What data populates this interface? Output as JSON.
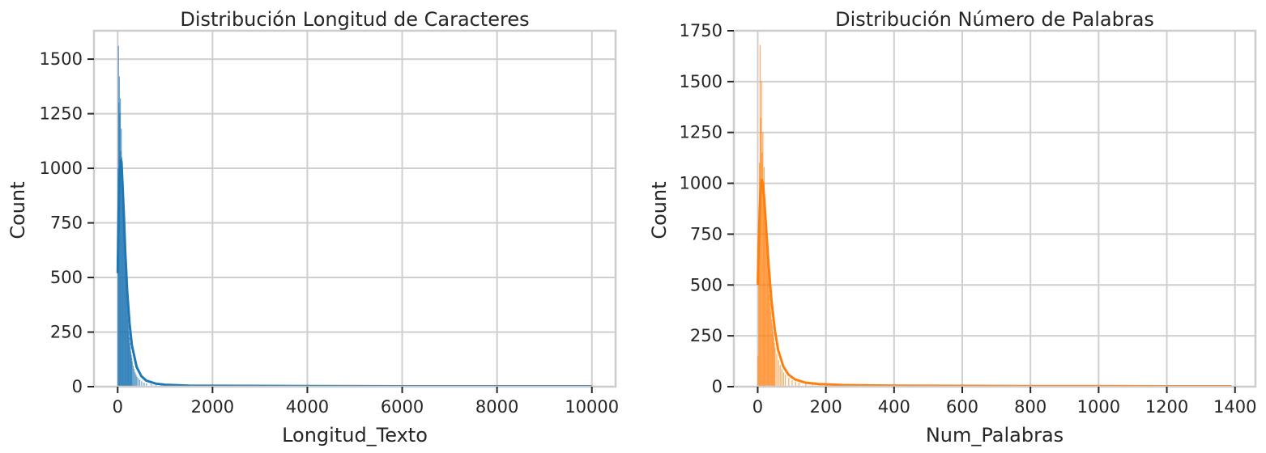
{
  "chart_data": [
    {
      "type": "bar",
      "subtype": "histogram-with-kde",
      "title": "Distribución Longitud de Caracteres",
      "xlabel": "Longitud_Texto",
      "ylabel": "Count",
      "xlim": [
        -500,
        10500
      ],
      "ylim": [
        0,
        1630
      ],
      "xticks": [
        0,
        2000,
        4000,
        6000,
        8000,
        10000
      ],
      "yticks": [
        0,
        250,
        500,
        750,
        1000,
        1250,
        1500
      ],
      "grid": true,
      "color": "#1f77b4",
      "bin_width": 10,
      "bins": [
        {
          "x": 0,
          "count": 1000
        },
        {
          "x": 10,
          "count": 1560
        },
        {
          "x": 20,
          "count": 1300
        },
        {
          "x": 30,
          "count": 1420
        },
        {
          "x": 40,
          "count": 1250
        },
        {
          "x": 50,
          "count": 1320
        },
        {
          "x": 60,
          "count": 1080
        },
        {
          "x": 70,
          "count": 1180
        },
        {
          "x": 80,
          "count": 1050
        },
        {
          "x": 90,
          "count": 980
        },
        {
          "x": 100,
          "count": 900
        },
        {
          "x": 110,
          "count": 820
        },
        {
          "x": 120,
          "count": 760
        },
        {
          "x": 130,
          "count": 690
        },
        {
          "x": 140,
          "count": 630
        },
        {
          "x": 150,
          "count": 580
        },
        {
          "x": 160,
          "count": 520
        },
        {
          "x": 170,
          "count": 470
        },
        {
          "x": 180,
          "count": 430
        },
        {
          "x": 190,
          "count": 390
        },
        {
          "x": 200,
          "count": 350
        },
        {
          "x": 210,
          "count": 310
        },
        {
          "x": 220,
          "count": 280
        },
        {
          "x": 230,
          "count": 250
        },
        {
          "x": 240,
          "count": 225
        },
        {
          "x": 250,
          "count": 200
        },
        {
          "x": 260,
          "count": 180
        },
        {
          "x": 270,
          "count": 160
        },
        {
          "x": 280,
          "count": 145
        },
        {
          "x": 290,
          "count": 130
        },
        {
          "x": 300,
          "count": 115
        },
        {
          "x": 320,
          "count": 95
        },
        {
          "x": 340,
          "count": 80
        },
        {
          "x": 360,
          "count": 65
        },
        {
          "x": 380,
          "count": 55
        },
        {
          "x": 400,
          "count": 45
        },
        {
          "x": 430,
          "count": 38
        },
        {
          "x": 460,
          "count": 30
        },
        {
          "x": 500,
          "count": 24
        },
        {
          "x": 550,
          "count": 18
        },
        {
          "x": 600,
          "count": 14
        },
        {
          "x": 700,
          "count": 10
        },
        {
          "x": 800,
          "count": 7
        },
        {
          "x": 1000,
          "count": 5
        },
        {
          "x": 1300,
          "count": 3
        },
        {
          "x": 1700,
          "count": 2
        },
        {
          "x": 2500,
          "count": 1
        },
        {
          "x": 4000,
          "count": 1
        }
      ],
      "kde": [
        {
          "x": 0,
          "y": 520
        },
        {
          "x": 20,
          "y": 800
        },
        {
          "x": 40,
          "y": 960
        },
        {
          "x": 60,
          "y": 1040
        },
        {
          "x": 80,
          "y": 1030
        },
        {
          "x": 100,
          "y": 940
        },
        {
          "x": 130,
          "y": 790
        },
        {
          "x": 160,
          "y": 620
        },
        {
          "x": 200,
          "y": 440
        },
        {
          "x": 250,
          "y": 290
        },
        {
          "x": 300,
          "y": 190
        },
        {
          "x": 400,
          "y": 90
        },
        {
          "x": 500,
          "y": 48
        },
        {
          "x": 600,
          "y": 28
        },
        {
          "x": 800,
          "y": 14
        },
        {
          "x": 1000,
          "y": 9
        },
        {
          "x": 1500,
          "y": 5
        },
        {
          "x": 2000,
          "y": 4
        },
        {
          "x": 4000,
          "y": 3
        },
        {
          "x": 6000,
          "y": 2
        },
        {
          "x": 8000,
          "y": 2
        },
        {
          "x": 10000,
          "y": 2
        }
      ]
    },
    {
      "type": "bar",
      "subtype": "histogram-with-kde",
      "title": "Distribución Número de Palabras",
      "xlabel": "Num_Palabras",
      "ylabel": "Count",
      "xlim": [
        -70,
        1460
      ],
      "ylim": [
        0,
        1750
      ],
      "xticks": [
        0,
        200,
        400,
        600,
        800,
        1000,
        1200,
        1400
      ],
      "yticks": [
        0,
        250,
        500,
        750,
        1000,
        1250,
        1500,
        1750
      ],
      "grid": true,
      "color": "#ff7f0e",
      "bin_width": 2,
      "bins": [
        {
          "x": 0,
          "count": 150
        },
        {
          "x": 2,
          "count": 700
        },
        {
          "x": 4,
          "count": 1100
        },
        {
          "x": 6,
          "count": 1680
        },
        {
          "x": 8,
          "count": 1320
        },
        {
          "x": 10,
          "count": 1500
        },
        {
          "x": 12,
          "count": 1150
        },
        {
          "x": 14,
          "count": 1250
        },
        {
          "x": 16,
          "count": 1000
        },
        {
          "x": 18,
          "count": 1080
        },
        {
          "x": 20,
          "count": 900
        },
        {
          "x": 22,
          "count": 820
        },
        {
          "x": 24,
          "count": 760
        },
        {
          "x": 26,
          "count": 680
        },
        {
          "x": 28,
          "count": 620
        },
        {
          "x": 30,
          "count": 560
        },
        {
          "x": 32,
          "count": 510
        },
        {
          "x": 34,
          "count": 450
        },
        {
          "x": 36,
          "count": 410
        },
        {
          "x": 38,
          "count": 370
        },
        {
          "x": 40,
          "count": 330
        },
        {
          "x": 42,
          "count": 300
        },
        {
          "x": 44,
          "count": 270
        },
        {
          "x": 46,
          "count": 240
        },
        {
          "x": 48,
          "count": 215
        },
        {
          "x": 50,
          "count": 190
        },
        {
          "x": 55,
          "count": 160
        },
        {
          "x": 60,
          "count": 130
        },
        {
          "x": 65,
          "count": 105
        },
        {
          "x": 70,
          "count": 85
        },
        {
          "x": 75,
          "count": 70
        },
        {
          "x": 80,
          "count": 58
        },
        {
          "x": 90,
          "count": 42
        },
        {
          "x": 100,
          "count": 32
        },
        {
          "x": 110,
          "count": 25
        },
        {
          "x": 120,
          "count": 19
        },
        {
          "x": 140,
          "count": 13
        },
        {
          "x": 160,
          "count": 9
        },
        {
          "x": 180,
          "count": 7
        },
        {
          "x": 200,
          "count": 5
        },
        {
          "x": 250,
          "count": 3
        },
        {
          "x": 350,
          "count": 2
        },
        {
          "x": 500,
          "count": 1
        },
        {
          "x": 660,
          "count": 1
        }
      ],
      "kde": [
        {
          "x": 0,
          "y": 500
        },
        {
          "x": 4,
          "y": 760
        },
        {
          "x": 8,
          "y": 960
        },
        {
          "x": 12,
          "y": 1020
        },
        {
          "x": 16,
          "y": 990
        },
        {
          "x": 20,
          "y": 900
        },
        {
          "x": 26,
          "y": 750
        },
        {
          "x": 32,
          "y": 600
        },
        {
          "x": 40,
          "y": 430
        },
        {
          "x": 50,
          "y": 280
        },
        {
          "x": 60,
          "y": 180
        },
        {
          "x": 75,
          "y": 100
        },
        {
          "x": 90,
          "y": 60
        },
        {
          "x": 110,
          "y": 35
        },
        {
          "x": 140,
          "y": 20
        },
        {
          "x": 180,
          "y": 13
        },
        {
          "x": 250,
          "y": 8
        },
        {
          "x": 400,
          "y": 5
        },
        {
          "x": 600,
          "y": 4
        },
        {
          "x": 800,
          "y": 3
        },
        {
          "x": 1000,
          "y": 3
        },
        {
          "x": 1200,
          "y": 2
        },
        {
          "x": 1390,
          "y": 2
        }
      ]
    }
  ]
}
